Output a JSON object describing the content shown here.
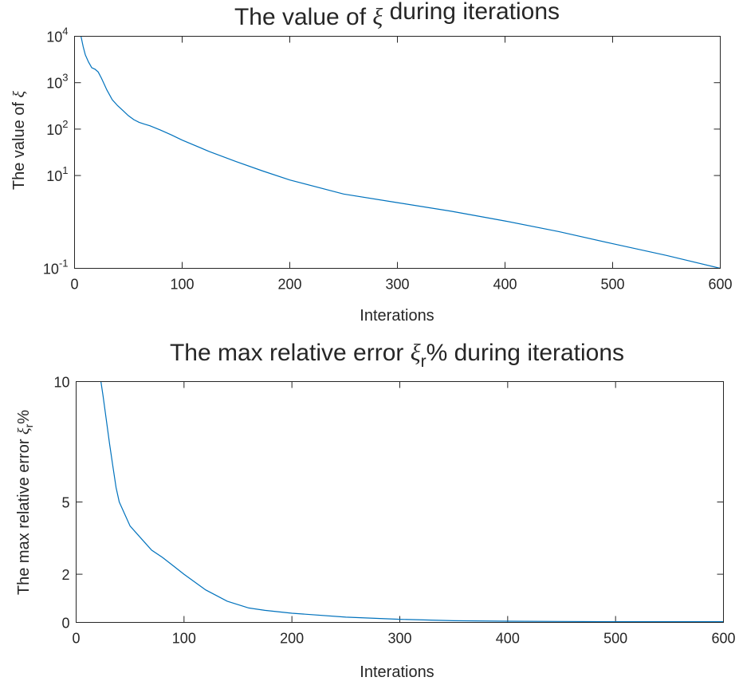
{
  "colors": {
    "series": "#0072bd",
    "axis": "#262626",
    "background": "#ffffff"
  },
  "chart_data": [
    {
      "type": "line",
      "title": {
        "pre": "The value of ",
        "sym": "ξ",
        "sub": "",
        "post": " during iterations"
      },
      "xlabel": "Interations",
      "ylabel": {
        "pre": "The value of ",
        "sym": "ξ",
        "sub": "",
        "post": ""
      },
      "xscale": "linear",
      "yscale": "log",
      "xlim": [
        0,
        600
      ],
      "ylim": [
        0.1,
        10000
      ],
      "grid": false,
      "xticks": [
        0,
        100,
        200,
        300,
        400,
        500,
        600
      ],
      "xtick_labels": [
        "0",
        "100",
        "200",
        "300",
        "400",
        "500",
        "600"
      ],
      "yticks": [
        0.1,
        10,
        100,
        1000,
        10000
      ],
      "ytick_labels": [
        {
          "base": "10",
          "exp": "-1"
        },
        {
          "base": "10",
          "exp": "1"
        },
        {
          "base": "10",
          "exp": "2"
        },
        {
          "base": "10",
          "exp": "3"
        },
        {
          "base": "10",
          "exp": "4"
        }
      ],
      "series": [
        {
          "x": [
            6,
            8,
            10,
            13,
            16,
            19,
            22,
            25,
            30,
            35,
            40,
            45,
            50,
            55,
            60,
            65,
            70,
            80,
            90,
            100,
            125,
            150,
            175,
            200,
            250,
            300,
            350,
            400,
            450,
            500,
            550,
            600
          ],
          "y": [
            10000,
            6000,
            4000,
            2800,
            2100,
            1950,
            1700,
            1250,
            700,
            430,
            320,
            250,
            195,
            160,
            140,
            128,
            118,
            95,
            75,
            58,
            33,
            20,
            12.5,
            8,
            4,
            2.6,
            1.7,
            1.05,
            0.62,
            0.34,
            0.19,
            0.1
          ]
        }
      ]
    },
    {
      "type": "line",
      "title": {
        "pre": "The max relative error ",
        "sym": "ξ",
        "sub": "r",
        "post": "% during iterations"
      },
      "xlabel": "Interations",
      "ylabel": {
        "pre": "The max relative error ",
        "sym": "ξ",
        "sub": "r",
        "post": "%"
      },
      "xscale": "linear",
      "yscale": "linear",
      "xlim": [
        0,
        600
      ],
      "ylim": [
        0,
        10
      ],
      "grid": false,
      "xticks": [
        0,
        100,
        200,
        300,
        400,
        500,
        600
      ],
      "xtick_labels": [
        "0",
        "100",
        "200",
        "300",
        "400",
        "500",
        "600"
      ],
      "yticks": [
        0,
        2,
        5,
        10
      ],
      "ytick_labels": [
        "0",
        "2",
        "5",
        "10"
      ],
      "series": [
        {
          "x": [
            23,
            25,
            28,
            31,
            34,
            37,
            40,
            45,
            50,
            60,
            70,
            80,
            90,
            100,
            120,
            140,
            160,
            175,
            200,
            250,
            300,
            350,
            400,
            450,
            500,
            550,
            600
          ],
          "y": [
            10,
            9.4,
            8.4,
            7.4,
            6.5,
            5.6,
            5.0,
            4.5,
            4.0,
            3.5,
            3.0,
            2.7,
            2.35,
            2.0,
            1.35,
            0.88,
            0.6,
            0.5,
            0.38,
            0.22,
            0.13,
            0.07,
            0.05,
            0.04,
            0.03,
            0.03,
            0.03
          ]
        }
      ]
    }
  ]
}
